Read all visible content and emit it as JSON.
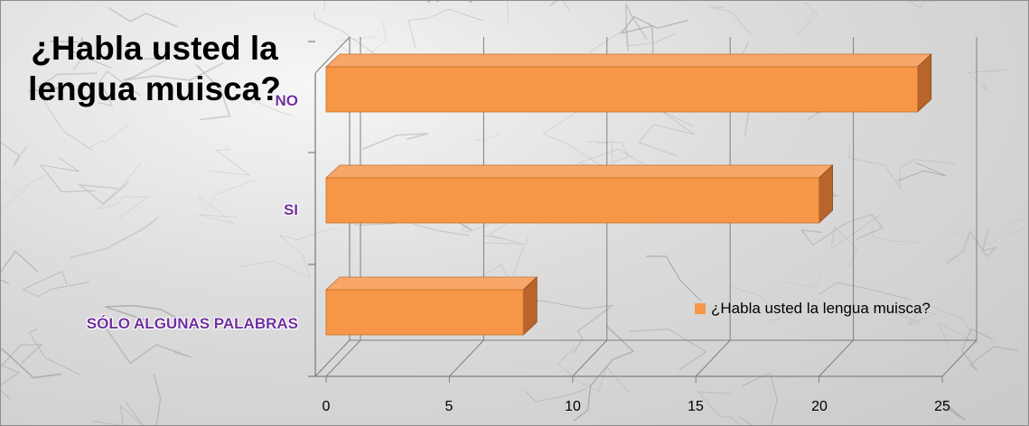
{
  "chart_data": {
    "type": "bar",
    "orientation": "horizontal",
    "style": "3d",
    "title": "¿Habla usted la lengua muisca?",
    "categories": [
      "NO",
      "SI",
      "SÓLO ALGUNAS PALABRAS"
    ],
    "series": [
      {
        "name": "¿Habla usted la lengua muisca?",
        "values": [
          24,
          20,
          8
        ],
        "color": "#f79646"
      }
    ],
    "xlim": [
      0,
      25
    ],
    "xticks": [
      0,
      5,
      10,
      15,
      20,
      25
    ],
    "grid": true,
    "legend": "right",
    "label_color": "#7030a0"
  }
}
